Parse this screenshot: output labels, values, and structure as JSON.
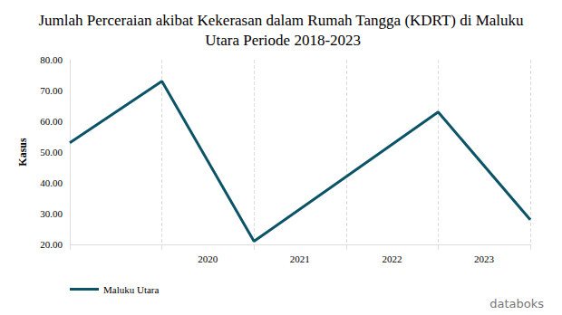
{
  "chart_data": {
    "type": "line",
    "title": "Jumlah Perceraian akibat Kekerasan dalam Rumah Tangga (KDRT) di Maluku Utara Periode 2018-2023",
    "y_label": "Kasus",
    "categories": [
      null,
      null,
      "2020",
      "2021",
      "2022",
      "2023"
    ],
    "series": [
      {
        "name": "Maluku Utara",
        "color": "#0b5468",
        "values": [
          53,
          73,
          21,
          42,
          63,
          28
        ]
      }
    ],
    "ylim": [
      20,
      80
    ],
    "yticks": [
      {
        "value": 20,
        "label": "20.00"
      },
      {
        "value": 30,
        "label": "30.00"
      },
      {
        "value": 40,
        "label": "40.00"
      },
      {
        "value": 50,
        "label": "50.00"
      },
      {
        "value": 60,
        "label": "60.00"
      },
      {
        "value": 70,
        "label": "70.00"
      },
      {
        "value": 80,
        "label": "80.00"
      }
    ],
    "grid": true,
    "legend": "bottom-left",
    "annotations": [
      "databoks"
    ]
  }
}
